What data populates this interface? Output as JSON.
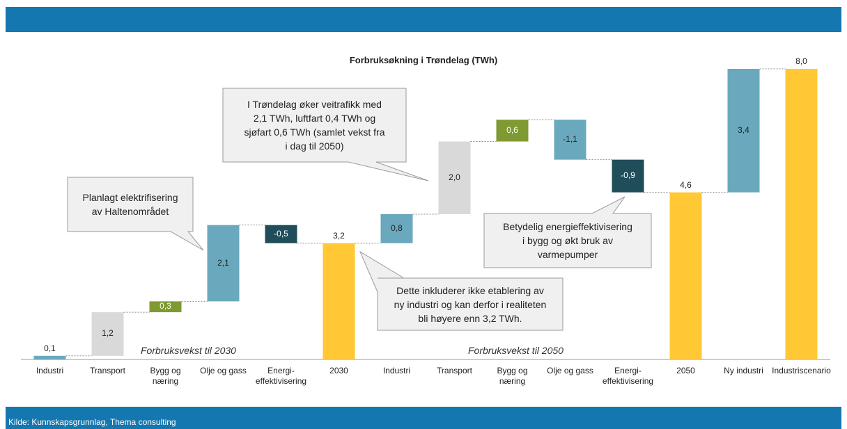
{
  "chart_data": {
    "type": "waterfall",
    "title": "Forbruksøkning i Trøndelag (TWh)",
    "categories": [
      "Industri",
      "Transport",
      "Bygg og\nnæring",
      "Olje og gass",
      "Energi-\neffektivisering",
      "2030",
      "Industri",
      "Transport",
      "Bygg og\nnæring",
      "Olje og gass",
      "Energi-\neffektivisering",
      "2050",
      "Ny industri",
      "Industriscenario"
    ],
    "values": [
      0.1,
      1.2,
      0.3,
      2.1,
      -0.5,
      3.2,
      0.8,
      2.0,
      0.6,
      -1.1,
      -0.9,
      4.6,
      3.4,
      8.0
    ],
    "value_labels": [
      "0,1",
      "1,2",
      "0,3",
      "2,1",
      "-0,5",
      "3,2",
      "0,8",
      "2,0",
      "0,6",
      "-1,1",
      "-0,9",
      "4,6",
      "3,4",
      "8,0"
    ],
    "totals": [
      false,
      false,
      false,
      false,
      false,
      true,
      false,
      false,
      false,
      false,
      false,
      true,
      false,
      true
    ],
    "colors": [
      "#6aa9bd",
      "#d9d9d9",
      "#7f9a30",
      "#6aa9bd",
      "#1f4e5a",
      "#ffc834",
      "#6aa9bd",
      "#d9d9d9",
      "#7f9a30",
      "#6aa9bd",
      "#1f4e5a",
      "#ffc834",
      "#6aa9bd",
      "#ffc834"
    ],
    "ylim": [
      0,
      8
    ],
    "section_labels": [
      "Forbruksvekst til 2030",
      "Forbruksvekst til 2050"
    ],
    "annotations": [
      "Planlagt elektrifisering\nav Haltenområdet",
      "I Trøndelag øker veitrafikk med\n2,1 TWh, luftfart 0,4 TWh og\nsjøfart 0,6 TWh (samlet vekst fra\ni dag til 2050)",
      "Betydelig energieffektivisering\ni bygg og økt bruk av\nvarmepumper",
      "Dette inkluderer ikke etablering av\nny industri og kan derfor i realiteten\nbli høyere enn 3,2 TWh."
    ],
    "source": "Kilde: Kunnskapsgrunnlag, Thema consulting"
  }
}
